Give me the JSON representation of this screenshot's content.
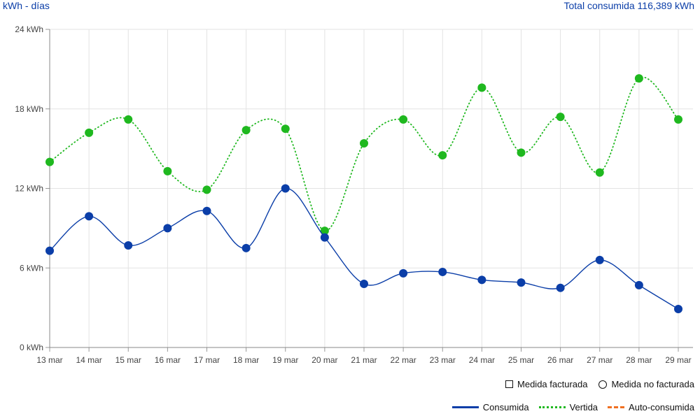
{
  "header": {
    "unit_label": "kWh - días",
    "total_label": "Total consumida 116,389 kWh"
  },
  "legend": {
    "symbols": [
      {
        "label": "Medida facturada",
        "icon": "square-outline-icon"
      },
      {
        "label": "Medida no facturada",
        "icon": "circle-outline-icon"
      }
    ],
    "series": [
      {
        "label": "Consumida",
        "color": "#0b3ea8",
        "style": "solid"
      },
      {
        "label": "Vertida",
        "color": "#1fb81f",
        "style": "dotted"
      },
      {
        "label": "Auto-consumida",
        "color": "#f07022",
        "style": "dashed"
      }
    ]
  },
  "chart_data": {
    "type": "line",
    "categories": [
      "13 mar",
      "14 mar",
      "15 mar",
      "16 mar",
      "17 mar",
      "18 mar",
      "19 mar",
      "20 mar",
      "21 mar",
      "22 mar",
      "23 mar",
      "24 mar",
      "25 mar",
      "26 mar",
      "27 mar",
      "28 mar",
      "29 mar"
    ],
    "y_ticks": [
      "0 kWh",
      "6 kWh",
      "12 kWh",
      "18 kWh",
      "24 kWh"
    ],
    "ylim": [
      0,
      24
    ],
    "grid": true,
    "series": [
      {
        "name": "Consumida",
        "color": "#0b3ea8",
        "values": [
          7.3,
          9.9,
          7.7,
          9.0,
          10.3,
          7.5,
          12.0,
          8.3,
          4.8,
          5.6,
          5.7,
          5.1,
          4.9,
          4.5,
          6.6,
          4.7,
          2.9
        ]
      },
      {
        "name": "Vertida",
        "color": "#1fb81f",
        "values": [
          14.0,
          16.2,
          17.2,
          13.3,
          11.9,
          16.4,
          16.5,
          8.8,
          15.4,
          17.2,
          14.5,
          19.6,
          14.7,
          17.4,
          13.2,
          20.3,
          17.2
        ]
      }
    ]
  }
}
